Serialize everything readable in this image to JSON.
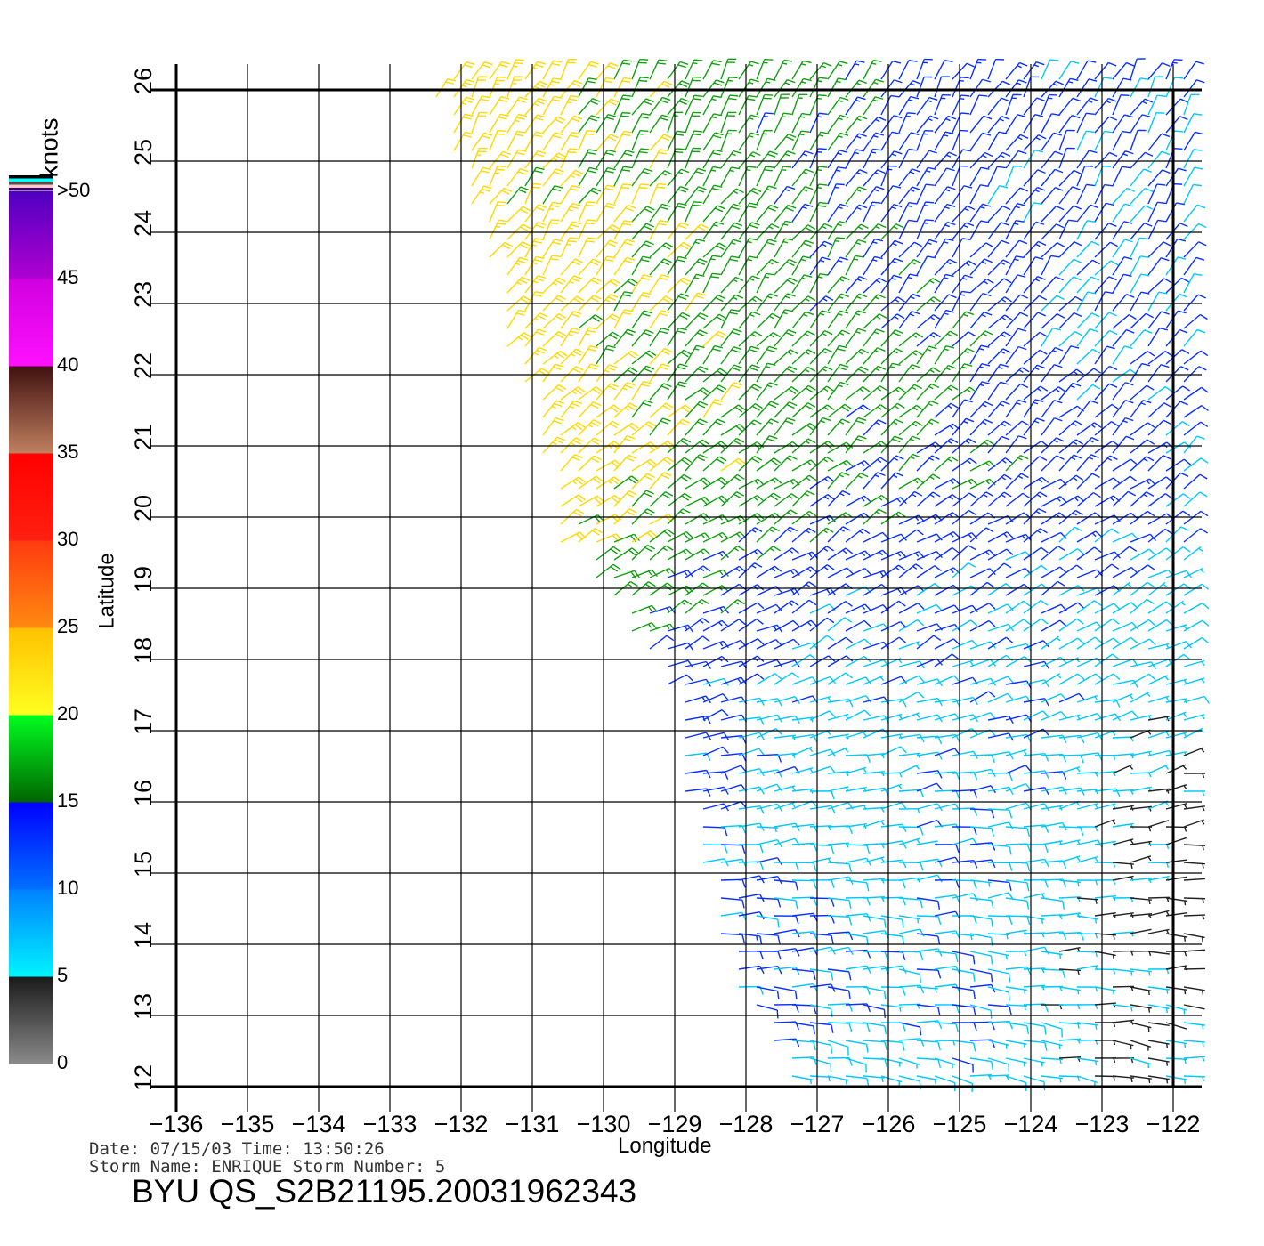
{
  "chart_data": {
    "type": "wind-barb",
    "xlabel": "Longitude",
    "ylabel": "Latitude",
    "xlim": [
      -136,
      -122
    ],
    "ylim": [
      12,
      26
    ],
    "grid": true,
    "x_ticks": [
      "-136",
      "-135",
      "-134",
      "-133",
      "-132",
      "-131",
      "-130",
      "-129",
      "-128",
      "-127",
      "-126",
      "-125",
      "-124",
      "-123",
      "-122"
    ],
    "y_ticks": [
      "12",
      "13",
      "14",
      "15",
      "16",
      "17",
      "18",
      "19",
      "20",
      "21",
      "22",
      "23",
      "24",
      "25",
      "26"
    ],
    "colorbar": {
      "units": "knots",
      "tick_labels": [
        "0",
        "5",
        "10",
        "15",
        "20",
        "25",
        "30",
        "35",
        "40",
        "45",
        ">50"
      ],
      "range": [
        0,
        50
      ],
      "bands": [
        {
          "from": 0,
          "to": 5,
          "colors": [
            "#8a8a8a",
            "#1a1a1a"
          ]
        },
        {
          "from": 5,
          "to": 10,
          "colors": [
            "#00f4ff",
            "#0080ff"
          ]
        },
        {
          "from": 10,
          "to": 15,
          "colors": [
            "#0070ff",
            "#0000ff"
          ]
        },
        {
          "from": 15,
          "to": 20,
          "colors": [
            "#006400",
            "#00ff20"
          ]
        },
        {
          "from": 20,
          "to": 25,
          "colors": [
            "#ffff20",
            "#ffc000"
          ]
        },
        {
          "from": 25,
          "to": 30,
          "colors": [
            "#ff8a10",
            "#ff3a10"
          ]
        },
        {
          "from": 30,
          "to": 35,
          "colors": [
            "#ff2010",
            "#ff0000"
          ]
        },
        {
          "from": 35,
          "to": 40,
          "colors": [
            "#c08060",
            "#401010"
          ]
        },
        {
          "from": 40,
          "to": 45,
          "colors": [
            "#ff10ff",
            "#d000e0"
          ]
        },
        {
          "from": 45,
          "to": 50,
          "colors": [
            "#b000d0",
            "#5000c0"
          ]
        }
      ],
      "top_stripes": [
        "#3a0070",
        "#ffc8c8",
        "#505050",
        "#00ffff",
        "#000000"
      ]
    },
    "barb_colors": {
      "0": "#222222",
      "5": "#00c8ff",
      "10": "#0a30ff",
      "15": "#10a010",
      "20": "#ffd800",
      "25": "#ff7a00"
    },
    "field": {
      "lats": [
        26,
        25,
        24,
        23,
        22,
        21,
        20,
        19,
        18,
        17,
        16,
        15,
        14,
        13,
        12
      ],
      "lons": [
        -132,
        -131,
        -130,
        -129,
        -128,
        -127,
        -126,
        -125,
        -124,
        -123,
        -122
      ],
      "swath_west_edge": [
        -132.5,
        -132.1,
        -131.9,
        -131.6,
        -131.3,
        -131.0,
        -130.9,
        -130.2,
        -129.4,
        -129.1,
        -128.9,
        -128.7,
        -128.4,
        -128.0,
        -127.5
      ],
      "speed_knots": [
        [
          22,
          22,
          20,
          18,
          17,
          16,
          13,
          12,
          12,
          11,
          11
        ],
        [
          22,
          21,
          20,
          18,
          17,
          15,
          13,
          12,
          11,
          11,
          10
        ],
        [
          22,
          22,
          21,
          19,
          17,
          16,
          14,
          12,
          11,
          10,
          10
        ],
        [
          23,
          22,
          21,
          19,
          17,
          16,
          15,
          13,
          11,
          10,
          10
        ],
        [
          25,
          23,
          21,
          19,
          18,
          17,
          16,
          14,
          12,
          11,
          10
        ],
        [
          25,
          24,
          22,
          20,
          18,
          17,
          16,
          14,
          13,
          12,
          11
        ],
        [
          24,
          22,
          21,
          19,
          17,
          15,
          14,
          13,
          13,
          12,
          11
        ],
        [
          22,
          20,
          18,
          16,
          13,
          12,
          12,
          11,
          10,
          9,
          8
        ],
        [
          20,
          18,
          15,
          12,
          12,
          10,
          9,
          9,
          9,
          8,
          8
        ],
        [
          16,
          15,
          13,
          12,
          9,
          7,
          8,
          10,
          9,
          7,
          6
        ],
        [
          14,
          13,
          12,
          11,
          9,
          8,
          7,
          10,
          9,
          6,
          4
        ],
        [
          13,
          12,
          12,
          11,
          10,
          8,
          8,
          9,
          8,
          5,
          3
        ],
        [
          12,
          12,
          12,
          11,
          11,
          10,
          9,
          9,
          7,
          5,
          3
        ],
        [
          12,
          12,
          12,
          11,
          11,
          9,
          8,
          10,
          7,
          4,
          4
        ],
        [
          11,
          11,
          11,
          10,
          9,
          7,
          6,
          9,
          6,
          5,
          6
        ]
      ],
      "direction_from_deg": [
        30,
        32,
        35,
        38,
        42,
        48,
        55,
        60,
        65,
        75,
        80,
        85,
        90,
        95,
        100
      ]
    }
  },
  "footer": {
    "date_line": "Date: 07/15/03   Time: 13:50:26",
    "storm_line": "Storm Name: ENRIQUE   Storm Number: 5",
    "title": "BYU QS_S2B21195.20031962343"
  }
}
